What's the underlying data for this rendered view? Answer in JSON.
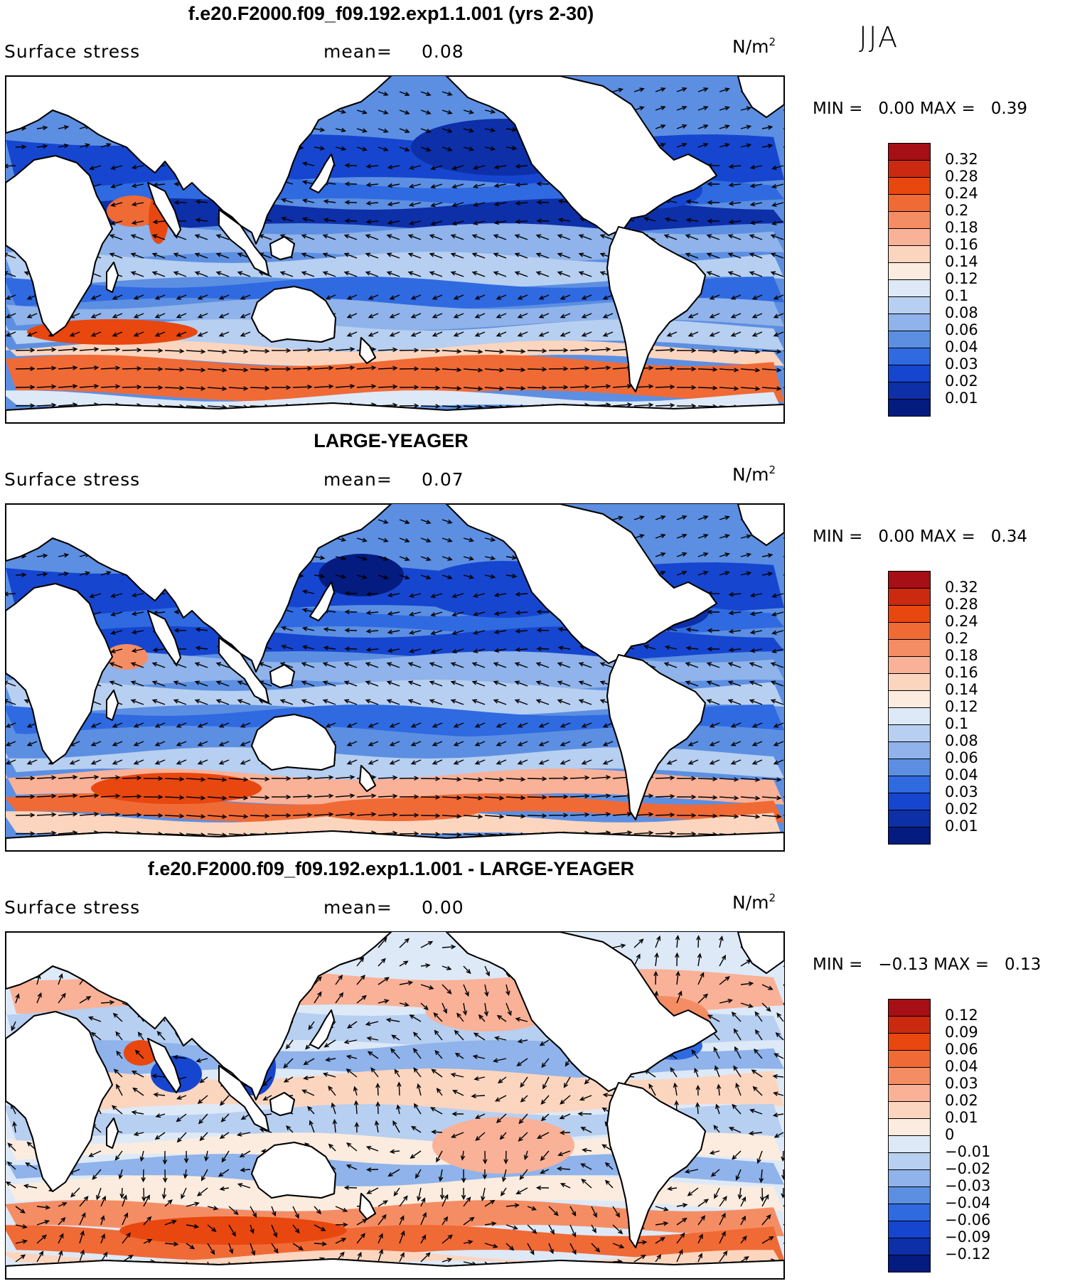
{
  "season": "JJA",
  "units_base": "N/m",
  "units_exp": "2",
  "panels": [
    {
      "title": "f.e20.F2000.f09_f09.192.exp1.1.001 (yrs 2-30)",
      "variable": "Surface stress",
      "mean_label": "mean=",
      "mean_value": "0.08",
      "min_label": "MIN =",
      "min_value": "0.00",
      "max_label": "MAX =",
      "max_value": "0.39",
      "map_kind": "model",
      "colorbar": {
        "labels": [
          "0.32",
          "0.28",
          "0.24",
          "0.2",
          "0.18",
          "0.16",
          "0.14",
          "0.12",
          "0.1",
          "0.08",
          "0.06",
          "0.04",
          "0.03",
          "0.02",
          "0.01"
        ],
        "colors": [
          "#a50f15",
          "#cb2a10",
          "#e8470f",
          "#f06a36",
          "#f58d64",
          "#f9b197",
          "#fcd5bf",
          "#fbecdf",
          "#dde9f7",
          "#b7cff0",
          "#8fb3ea",
          "#5c8fe2",
          "#2f6ae0",
          "#1646cf",
          "#0d2fa8",
          "#041b80"
        ]
      }
    },
    {
      "title": "LARGE-YEAGER",
      "variable": "Surface stress",
      "mean_label": "mean=",
      "mean_value": "0.07",
      "min_label": "MIN =",
      "min_value": "0.00",
      "max_label": "MAX =",
      "max_value": "0.34",
      "map_kind": "obs",
      "colorbar": {
        "labels": [
          "0.32",
          "0.28",
          "0.24",
          "0.2",
          "0.18",
          "0.16",
          "0.14",
          "0.12",
          "0.1",
          "0.08",
          "0.06",
          "0.04",
          "0.03",
          "0.02",
          "0.01"
        ],
        "colors": [
          "#a50f15",
          "#cb2a10",
          "#e8470f",
          "#f06a36",
          "#f58d64",
          "#f9b197",
          "#fcd5bf",
          "#fbecdf",
          "#dde9f7",
          "#b7cff0",
          "#8fb3ea",
          "#5c8fe2",
          "#2f6ae0",
          "#1646cf",
          "#0d2fa8",
          "#041b80"
        ]
      }
    },
    {
      "title": "f.e20.F2000.f09_f09.192.exp1.1.001 - LARGE-YEAGER",
      "variable": "Surface stress",
      "mean_label": "mean=",
      "mean_value": "0.00",
      "min_label": "MIN =",
      "min_value": "−0.13",
      "max_label": "MAX =",
      "max_value": "0.13",
      "map_kind": "diff",
      "colorbar": {
        "labels": [
          "0.12",
          "0.09",
          "0.06",
          "0.04",
          "0.03",
          "0.02",
          "0.01",
          "0",
          "−0.01",
          "−0.02",
          "−0.03",
          "−0.04",
          "−0.06",
          "−0.09",
          "−0.12"
        ],
        "colors": [
          "#a50f15",
          "#cb2a10",
          "#e8470f",
          "#f06a36",
          "#f58d64",
          "#f9b197",
          "#fcd5bf",
          "#fbecdf",
          "#dde9f7",
          "#b7cff0",
          "#8fb3ea",
          "#5c8fe2",
          "#2f6ae0",
          "#1646cf",
          "#0d2fa8",
          "#041b80"
        ]
      }
    }
  ]
}
